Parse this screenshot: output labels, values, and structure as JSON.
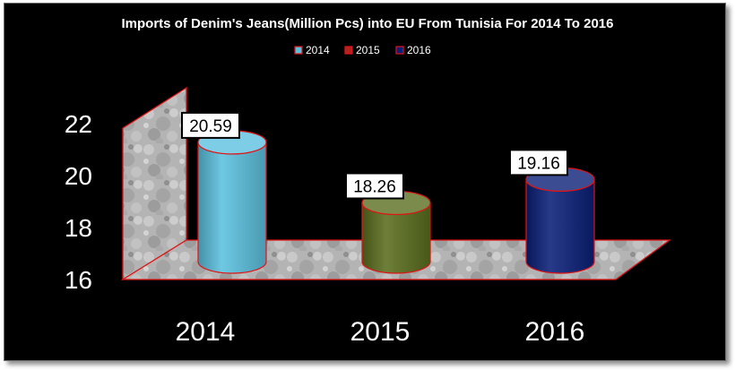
{
  "chart_data": {
    "type": "bar",
    "title": "Imports of Denim's Jeans(Million Pcs) into EU From Tunisia For 2014 To 2016",
    "categories": [
      "2014",
      "2015",
      "2016"
    ],
    "values": [
      20.59,
      18.26,
      19.16
    ],
    "data_labels": [
      "20.59",
      "18.26",
      "19.16"
    ],
    "legend": [
      "2014",
      "2015",
      "2016"
    ],
    "legend_position": "top",
    "colors": [
      "#5bc0de",
      "#5a6e1e",
      "#0a1f78"
    ],
    "y_ticks": [
      "16",
      "18",
      "20",
      "22"
    ],
    "ylim": [
      16,
      22
    ],
    "xlabel": "",
    "ylabel": "",
    "grid": false,
    "style": "3D cylinder",
    "background": "#000000",
    "edge_color": "#e01414"
  }
}
